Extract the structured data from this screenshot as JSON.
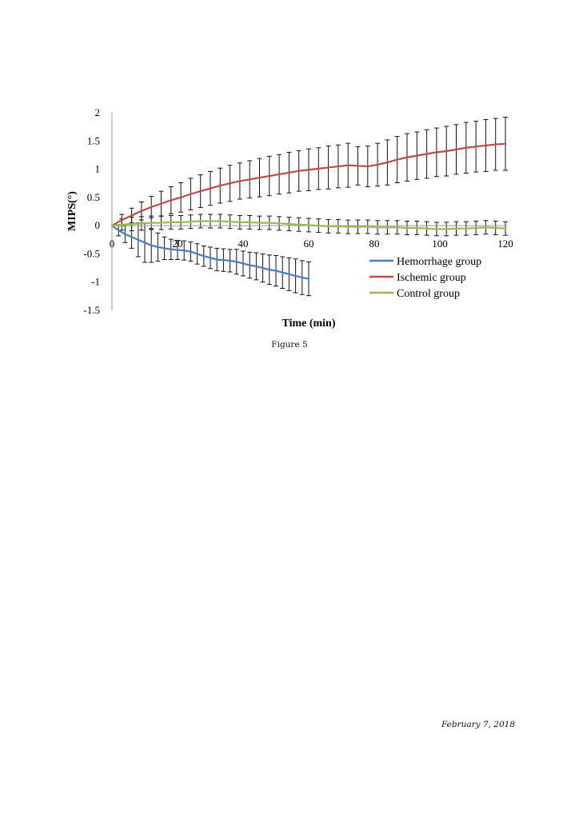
{
  "figure_caption": "Figure 5",
  "footer_date": "February 7, 2018",
  "chart_data": {
    "type": "line",
    "xlabel": "Time (min)",
    "ylabel": "MIPS(°)",
    "xlim": [
      0,
      120
    ],
    "ylim": [
      -1.5,
      2
    ],
    "x_ticks": [
      0,
      20,
      40,
      60,
      80,
      100,
      120
    ],
    "y_ticks": [
      2,
      1.5,
      1,
      0.5,
      0,
      -0.5,
      -1,
      -1.5
    ],
    "grid": false,
    "legend_position": "lower-right",
    "series": [
      {
        "name": "Hemorrhage group",
        "color": "#4a7ebb",
        "x": [
          0,
          2,
          4,
          6,
          8,
          10,
          12,
          14,
          16,
          18,
          20,
          22,
          24,
          26,
          28,
          30,
          32,
          34,
          36,
          38,
          40,
          42,
          44,
          46,
          48,
          50,
          52,
          54,
          56,
          58,
          60
        ],
        "y": [
          0,
          -0.08,
          -0.15,
          -0.2,
          -0.25,
          -0.3,
          -0.35,
          -0.38,
          -0.4,
          -0.42,
          -0.43,
          -0.44,
          -0.46,
          -0.5,
          -0.54,
          -0.57,
          -0.6,
          -0.61,
          -0.62,
          -0.64,
          -0.67,
          -0.7,
          -0.72,
          -0.75,
          -0.78,
          -0.8,
          -0.83,
          -0.86,
          -0.89,
          -0.92,
          -0.94
        ],
        "err": [
          0,
          0.1,
          0.15,
          0.2,
          0.3,
          0.35,
          0.3,
          0.25,
          0.2,
          0.18,
          0.17,
          0.17,
          0.17,
          0.18,
          0.18,
          0.19,
          0.2,
          0.2,
          0.2,
          0.22,
          0.22,
          0.23,
          0.24,
          0.25,
          0.26,
          0.27,
          0.28,
          0.29,
          0.3,
          0.3,
          0.3
        ]
      },
      {
        "name": "Ischemic group",
        "color": "#be4b48",
        "x": [
          0,
          3,
          6,
          9,
          12,
          15,
          18,
          21,
          24,
          27,
          30,
          33,
          36,
          39,
          42,
          45,
          48,
          51,
          54,
          57,
          60,
          63,
          66,
          69,
          72,
          75,
          78,
          81,
          84,
          87,
          90,
          93,
          96,
          99,
          102,
          105,
          108,
          111,
          114,
          117,
          120
        ],
        "y": [
          0,
          0.1,
          0.18,
          0.26,
          0.33,
          0.39,
          0.45,
          0.5,
          0.56,
          0.61,
          0.66,
          0.71,
          0.75,
          0.79,
          0.82,
          0.85,
          0.88,
          0.91,
          0.94,
          0.97,
          0.99,
          1.01,
          1.03,
          1.05,
          1.07,
          1.06,
          1.05,
          1.08,
          1.12,
          1.17,
          1.21,
          1.24,
          1.27,
          1.3,
          1.32,
          1.35,
          1.38,
          1.4,
          1.42,
          1.44,
          1.45
        ],
        "err": [
          0,
          0.1,
          0.13,
          0.16,
          0.19,
          0.22,
          0.24,
          0.26,
          0.28,
          0.29,
          0.3,
          0.31,
          0.32,
          0.32,
          0.33,
          0.34,
          0.35,
          0.35,
          0.36,
          0.36,
          0.37,
          0.37,
          0.38,
          0.38,
          0.39,
          0.34,
          0.36,
          0.38,
          0.4,
          0.41,
          0.42,
          0.42,
          0.43,
          0.43,
          0.44,
          0.44,
          0.45,
          0.45,
          0.46,
          0.46,
          0.47
        ]
      },
      {
        "name": "Control group",
        "color": "#98b954",
        "x": [
          0,
          3,
          6,
          9,
          12,
          15,
          18,
          21,
          24,
          27,
          30,
          33,
          36,
          39,
          42,
          45,
          48,
          51,
          54,
          57,
          60,
          63,
          66,
          69,
          72,
          75,
          78,
          81,
          84,
          87,
          90,
          93,
          96,
          99,
          102,
          105,
          108,
          111,
          114,
          117,
          120
        ],
        "y": [
          0,
          0.02,
          0.03,
          0.04,
          0.05,
          0.05,
          0.06,
          0.06,
          0.07,
          0.08,
          0.08,
          0.08,
          0.07,
          0.06,
          0.06,
          0.05,
          0.05,
          0.04,
          0.03,
          0.02,
          0.01,
          0,
          -0.01,
          -0.01,
          -0.02,
          -0.02,
          -0.02,
          -0.03,
          -0.03,
          -0.03,
          -0.04,
          -0.04,
          -0.05,
          -0.06,
          -0.06,
          -0.05,
          -0.05,
          -0.04,
          -0.03,
          -0.04,
          -0.05
        ],
        "err": [
          0,
          0.1,
          0.12,
          0.12,
          0.12,
          0.12,
          0.12,
          0.12,
          0.12,
          0.12,
          0.12,
          0.12,
          0.12,
          0.12,
          0.12,
          0.12,
          0.12,
          0.12,
          0.12,
          0.12,
          0.12,
          0.12,
          0.12,
          0.12,
          0.12,
          0.12,
          0.12,
          0.12,
          0.12,
          0.12,
          0.12,
          0.12,
          0.12,
          0.12,
          0.12,
          0.12,
          0.12,
          0.12,
          0.12,
          0.12,
          0.12
        ]
      }
    ]
  }
}
